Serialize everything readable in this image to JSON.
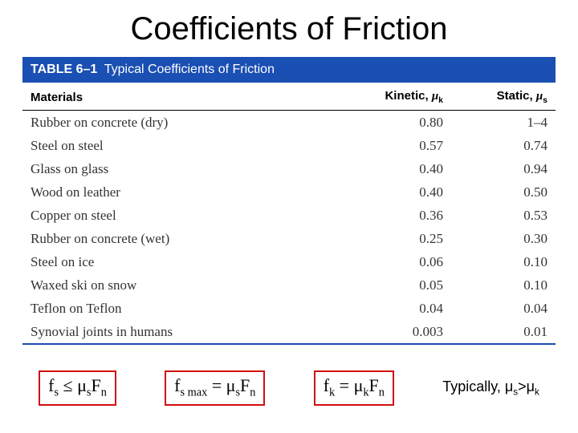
{
  "title": "Coefficients of Friction",
  "table": {
    "header_num": "TABLE 6–1",
    "header_caption": "Typical Coefficients of Friction",
    "col_materials": "Materials",
    "col_kinetic_prefix": "Kinetic, ",
    "col_kinetic_sym": "μ",
    "col_kinetic_sub": "k",
    "col_static_prefix": "Static, ",
    "col_static_sym": "μ",
    "col_static_sub": "s",
    "rows": [
      {
        "m": "Rubber on concrete (dry)",
        "k": "0.80",
        "s": "1–4"
      },
      {
        "m": "Steel on steel",
        "k": "0.57",
        "s": "0.74"
      },
      {
        "m": "Glass on glass",
        "k": "0.40",
        "s": "0.94"
      },
      {
        "m": "Wood on leather",
        "k": "0.40",
        "s": "0.50"
      },
      {
        "m": "Copper on steel",
        "k": "0.36",
        "s": "0.53"
      },
      {
        "m": "Rubber on concrete (wet)",
        "k": "0.25",
        "s": "0.30"
      },
      {
        "m": "Steel on ice",
        "k": "0.06",
        "s": "0.10"
      },
      {
        "m": "Waxed ski on snow",
        "k": "0.05",
        "s": "0.10"
      },
      {
        "m": "Teflon on Teflon",
        "k": "0.04",
        "s": "0.04"
      },
      {
        "m": "Synovial joints in humans",
        "k": "0.003",
        "s": "0.01"
      }
    ]
  },
  "formulas": {
    "f1": {
      "lhs": "f",
      "lhs_sub": "s",
      "op": " ≤ ",
      "mu": "μ",
      "mu_sub": "s",
      "F": "F",
      "F_sub": "n"
    },
    "f2": {
      "lhs": "f",
      "lhs_sub": "s max",
      "op": " = ",
      "mu": "μ",
      "mu_sub": "s",
      "F": "F",
      "F_sub": "n"
    },
    "f3": {
      "lhs": "f",
      "lhs_sub": "k",
      "op": " = ",
      "mu": "μ",
      "mu_sub": "k",
      "F": "F",
      "F_sub": "n"
    },
    "note_prefix": "Typically, ",
    "note_mu1": "μ",
    "note_sub1": "s",
    "note_op": ">",
    "note_mu2": "μ",
    "note_sub2": "k"
  },
  "style": {
    "header_bg": "#1a4fb3",
    "box_border": "#d01010"
  }
}
